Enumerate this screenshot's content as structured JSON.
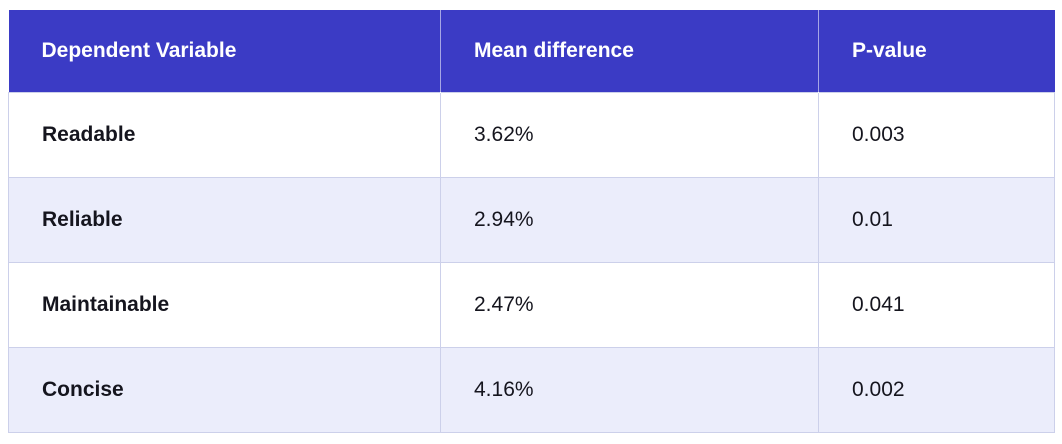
{
  "chart_data": {
    "type": "table",
    "columns": [
      "Dependent Variable",
      "Mean difference",
      "P-value"
    ],
    "rows": [
      [
        "Readable",
        "3.62%",
        "0.003"
      ],
      [
        "Reliable",
        "2.94%",
        "0.01"
      ],
      [
        "Maintainable",
        "2.47%",
        "0.041"
      ],
      [
        "Concise",
        "4.16%",
        "0.002"
      ]
    ],
    "legend": "none",
    "grid": "cell borders on body rows, alternating row shading"
  },
  "table": {
    "headers": {
      "variable": "Dependent Variable",
      "mean_difference": "Mean difference",
      "p_value": "P-value"
    },
    "rows": [
      {
        "variable": "Readable",
        "mean_difference": "3.62%",
        "p_value": "0.003"
      },
      {
        "variable": "Reliable",
        "mean_difference": "2.94%",
        "p_value": "0.01"
      },
      {
        "variable": "Maintainable",
        "mean_difference": "2.47%",
        "p_value": "0.041"
      },
      {
        "variable": "Concise",
        "mean_difference": "4.16%",
        "p_value": "0.002"
      }
    ]
  },
  "colors": {
    "header_bg": "#3b3bc5",
    "header_text": "#ffffff",
    "row_bg": "#ffffff",
    "row_alt_bg": "#ebedfb",
    "border": "#ccd0ea",
    "text": "#15151e"
  }
}
